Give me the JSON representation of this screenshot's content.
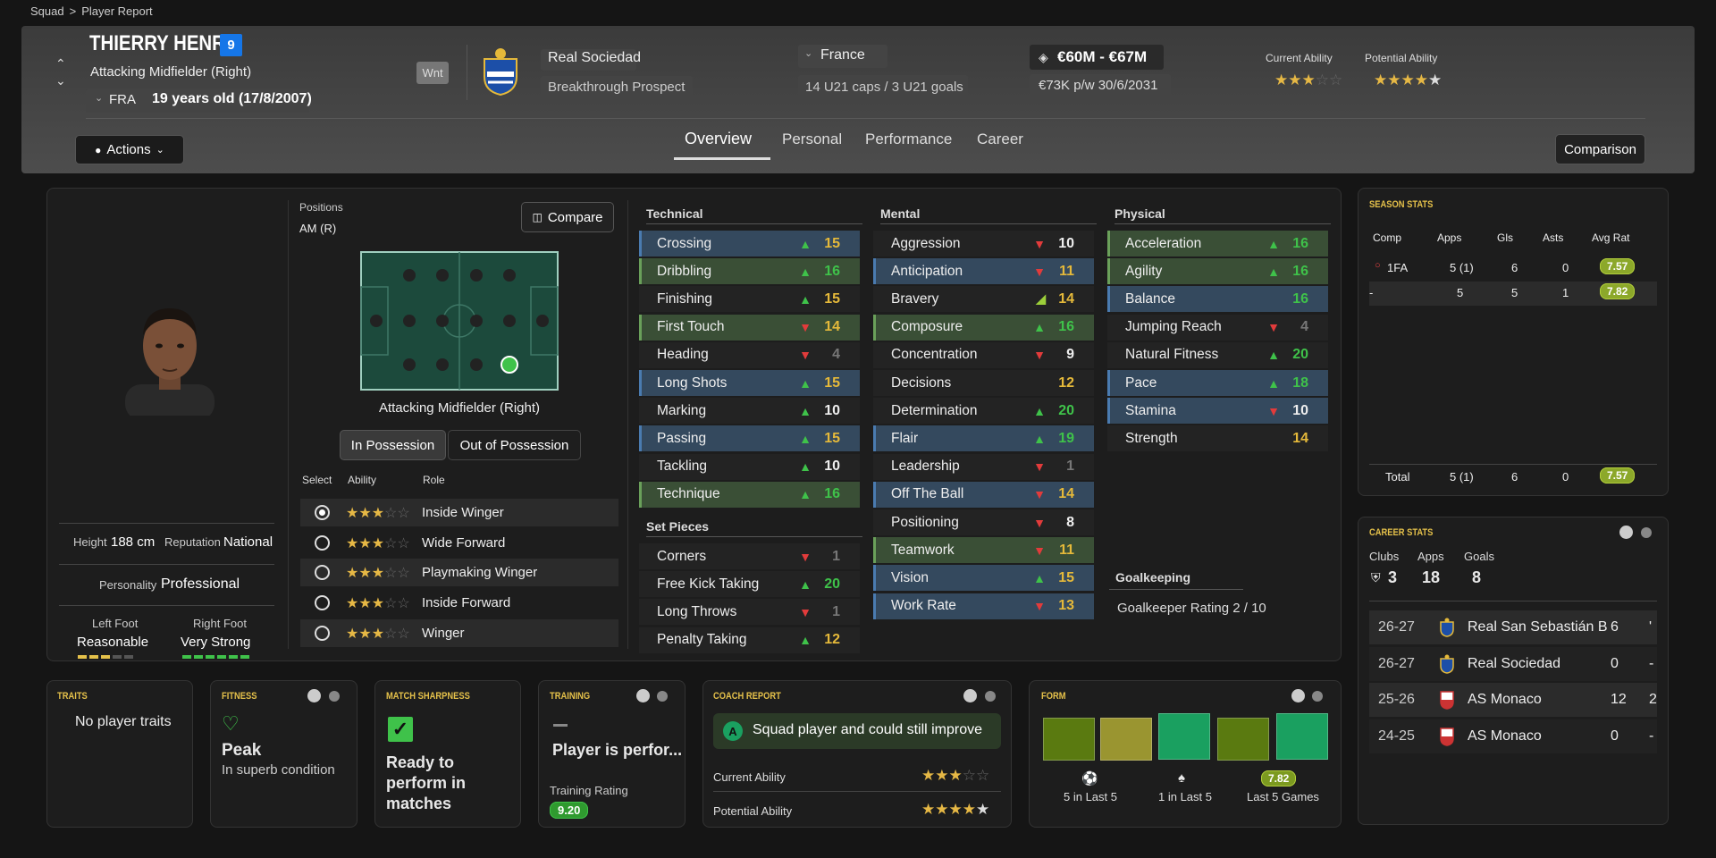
{
  "breadcrumb": {
    "root": "Squad",
    "sep": ">",
    "current": "Player Report"
  },
  "player": {
    "name": "THIERRY HENRY",
    "number": "9",
    "position": "Attacking Midfielder (Right)",
    "nationality_code": "FRA",
    "age": "19 years old (17/8/2007)",
    "wnt": "Wnt",
    "club": "Real Sociedad",
    "status": "Breakthrough Prospect",
    "country": "France",
    "caps": "14 U21 caps / 3 U21 goals",
    "value": "€60M - €67M",
    "wage": "€73K p/w 30/6/2031",
    "current_ability_label": "Current Ability",
    "potential_ability_label": "Potential Ability",
    "current_ability_stars": 3,
    "potential_ability_stars": 4.5
  },
  "actions_label": "Actions",
  "tabs": [
    "Overview",
    "Personal",
    "Performance",
    "Career"
  ],
  "comparison_label": "Comparison",
  "profile": {
    "height_label": "Height",
    "height": "188 cm",
    "reputation_label": "Reputation",
    "reputation": "National",
    "personality_label": "Personality",
    "personality": "Professional",
    "left_foot_label": "Left Foot",
    "left_foot": "Reasonable",
    "right_foot_label": "Right Foot",
    "right_foot": "Very Strong"
  },
  "positions": {
    "title": "Positions",
    "value": "AM (R)",
    "compare_label": "Compare",
    "pitch_caption": "Attacking Midfielder (Right)",
    "in_possession": "In Possession",
    "out_possession": "Out of Possession",
    "col_select": "Select",
    "col_ability": "Ability",
    "col_role": "Role",
    "roles": [
      {
        "name": "Inside Winger",
        "stars": 3,
        "selected": true
      },
      {
        "name": "Wide Forward",
        "stars": 3,
        "selected": false
      },
      {
        "name": "Playmaking Winger",
        "stars": 3,
        "selected": false
      },
      {
        "name": "Inside Forward",
        "stars": 3,
        "selected": false
      },
      {
        "name": "Winger",
        "stars": 3,
        "selected": false
      }
    ]
  },
  "attributes": {
    "technical_title": "Technical",
    "technical": [
      {
        "name": "Crossing",
        "value": "15",
        "trend": "up",
        "hl": "blue"
      },
      {
        "name": "Dribbling",
        "value": "16",
        "trend": "up",
        "hl": "green"
      },
      {
        "name": "Finishing",
        "value": "15",
        "trend": "up",
        "hl": ""
      },
      {
        "name": "First Touch",
        "value": "14",
        "trend": "down",
        "hl": "green"
      },
      {
        "name": "Heading",
        "value": "4",
        "trend": "down",
        "hl": ""
      },
      {
        "name": "Long Shots",
        "value": "15",
        "trend": "up",
        "hl": "blue"
      },
      {
        "name": "Marking",
        "value": "10",
        "trend": "up",
        "hl": ""
      },
      {
        "name": "Passing",
        "value": "15",
        "trend": "up",
        "hl": "blue"
      },
      {
        "name": "Tackling",
        "value": "10",
        "trend": "up",
        "hl": ""
      },
      {
        "name": "Technique",
        "value": "16",
        "trend": "up",
        "hl": "green"
      }
    ],
    "setpieces_title": "Set Pieces",
    "setpieces": [
      {
        "name": "Corners",
        "value": "1",
        "trend": "down",
        "hl": ""
      },
      {
        "name": "Free Kick Taking",
        "value": "20",
        "trend": "up",
        "hl": ""
      },
      {
        "name": "Long Throws",
        "value": "1",
        "trend": "down",
        "hl": ""
      },
      {
        "name": "Penalty Taking",
        "value": "12",
        "trend": "up",
        "hl": ""
      }
    ],
    "mental_title": "Mental",
    "mental": [
      {
        "name": "Aggression",
        "value": "10",
        "trend": "down",
        "hl": ""
      },
      {
        "name": "Anticipation",
        "value": "11",
        "trend": "down",
        "hl": "blue"
      },
      {
        "name": "Bravery",
        "value": "14",
        "trend": "upright",
        "hl": ""
      },
      {
        "name": "Composure",
        "value": "16",
        "trend": "up",
        "hl": "green"
      },
      {
        "name": "Concentration",
        "value": "9",
        "trend": "down",
        "hl": ""
      },
      {
        "name": "Decisions",
        "value": "12",
        "trend": "",
        "hl": ""
      },
      {
        "name": "Determination",
        "value": "20",
        "trend": "up",
        "hl": ""
      },
      {
        "name": "Flair",
        "value": "19",
        "trend": "up",
        "hl": "blue"
      },
      {
        "name": "Leadership",
        "value": "1",
        "trend": "down",
        "hl": ""
      },
      {
        "name": "Off The Ball",
        "value": "14",
        "trend": "down",
        "hl": "blue"
      },
      {
        "name": "Positioning",
        "value": "8",
        "trend": "down",
        "hl": ""
      },
      {
        "name": "Teamwork",
        "value": "11",
        "trend": "down",
        "hl": "green"
      },
      {
        "name": "Vision",
        "value": "15",
        "trend": "up",
        "hl": "blue"
      },
      {
        "name": "Work Rate",
        "value": "13",
        "trend": "down",
        "hl": "blue"
      }
    ],
    "physical_title": "Physical",
    "physical": [
      {
        "name": "Acceleration",
        "value": "16",
        "trend": "up",
        "hl": "green"
      },
      {
        "name": "Agility",
        "value": "16",
        "trend": "up",
        "hl": "green"
      },
      {
        "name": "Balance",
        "value": "16",
        "trend": "",
        "hl": "blue"
      },
      {
        "name": "Jumping Reach",
        "value": "4",
        "trend": "down",
        "hl": ""
      },
      {
        "name": "Natural Fitness",
        "value": "20",
        "trend": "up",
        "hl": ""
      },
      {
        "name": "Pace",
        "value": "18",
        "trend": "up",
        "hl": "blue"
      },
      {
        "name": "Stamina",
        "value": "10",
        "trend": "down",
        "hl": "blue"
      },
      {
        "name": "Strength",
        "value": "14",
        "trend": "",
        "hl": ""
      }
    ],
    "gk_title": "Goalkeeping",
    "gk_rating": "Goalkeeper Rating 2 / 10"
  },
  "season_stats": {
    "title": "SEASON STATS",
    "headers": [
      "Comp",
      "Apps",
      "Gls",
      "Asts",
      "Avg Rat"
    ],
    "rows": [
      {
        "comp": "1FA",
        "apps": "5 (1)",
        "gls": "6",
        "asts": "0",
        "rat": "7.57"
      },
      {
        "comp": "-",
        "apps": "5",
        "gls": "5",
        "asts": "1",
        "rat": "7.82"
      }
    ],
    "total": {
      "label": "Total",
      "apps": "5 (1)",
      "gls": "6",
      "asts": "0",
      "rat": "7.57"
    }
  },
  "career_stats": {
    "title": "CAREER STATS",
    "clubs_label": "Clubs",
    "clubs": "3",
    "apps_label": "Apps",
    "apps": "18",
    "goals_label": "Goals",
    "goals": "8",
    "rows": [
      {
        "season": "26-27",
        "club": "Real San Sebastián B",
        "apps": "6",
        "goals": "'"
      },
      {
        "season": "26-27",
        "club": "Real Sociedad",
        "apps": "0",
        "goals": "-"
      },
      {
        "season": "25-26",
        "club": "AS Monaco",
        "apps": "12",
        "goals": "2"
      },
      {
        "season": "24-25",
        "club": "AS Monaco",
        "apps": "0",
        "goals": "-"
      }
    ]
  },
  "traits": {
    "title": "TRAITS",
    "text": "No player traits"
  },
  "fitness": {
    "title": "FITNESS",
    "status": "Peak",
    "detail": "In superb condition"
  },
  "sharpness": {
    "title": "MATCH SHARPNESS",
    "text": "Ready to perform in matches"
  },
  "training": {
    "title": "TRAINING",
    "text": "Player is perfor...",
    "rating_label": "Training Rating",
    "rating": "9.20"
  },
  "coach": {
    "title": "COACH REPORT",
    "grade": "A",
    "text": "Squad player and could still improve",
    "current_label": "Current Ability",
    "potential_label": "Potential Ability",
    "current_stars": 3,
    "potential_stars": 4.5
  },
  "form": {
    "title": "FORM",
    "bars": [
      "#5a7a10",
      "#9a9530",
      "#1aa060",
      "#5a7a10",
      "#1aa060"
    ],
    "last5_goals": "5 in Last 5",
    "last5_assists": "1 in Last 5",
    "avg": "7.82",
    "last5_games": "Last 5 Games"
  }
}
